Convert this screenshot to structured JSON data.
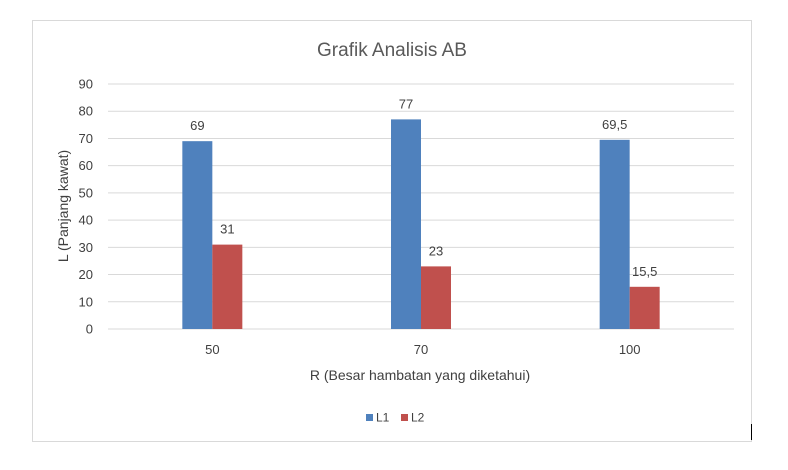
{
  "chart_data": {
    "type": "bar",
    "title": "Grafik Analisis AB",
    "xlabel": "R (Besar hambatan yang diketahui)",
    "ylabel": "L (Panjang kawat)",
    "categories": [
      "50",
      "70",
      "100"
    ],
    "ylim": [
      0,
      90
    ],
    "yticks": [
      "0",
      "10",
      "20",
      "30",
      "40",
      "50",
      "60",
      "70",
      "80",
      "90"
    ],
    "grid": true,
    "legend_position": "bottom",
    "series": [
      {
        "name": "L1",
        "values": [
          69,
          77,
          69.5
        ],
        "labels": [
          "69",
          "77",
          "69,5"
        ],
        "color": "#4f81bd"
      },
      {
        "name": "L2",
        "values": [
          31,
          23,
          15.5
        ],
        "labels": [
          "31",
          "23",
          "15,5"
        ],
        "color": "#c0504d"
      }
    ]
  },
  "colors": {
    "gridline": "#d9d9d9",
    "axis_text": "#404040",
    "title_text": "#595959"
  }
}
